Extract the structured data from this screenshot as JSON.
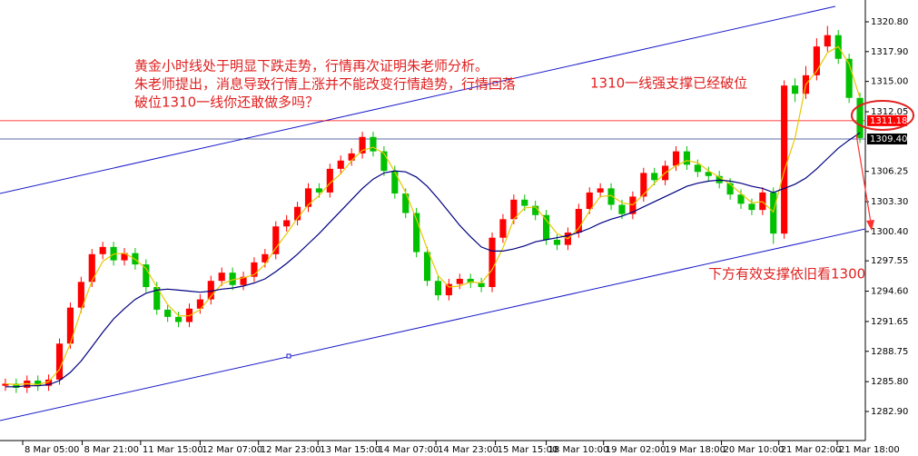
{
  "chart_data": {
    "type": "candlestick",
    "ylim": [
      1280.07,
      1322.92
    ],
    "yticks": [
      {
        "value": 1320.8,
        "label": "1320.80"
      },
      {
        "value": 1317.9,
        "label": "1317.90"
      },
      {
        "value": 1315,
        "label": "1315.00"
      },
      {
        "value": 1312.05,
        "label": "1312.05"
      },
      {
        "value": 1306.25,
        "label": "1306.25"
      },
      {
        "value": 1303.3,
        "label": "1303.30"
      },
      {
        "value": 1300.4,
        "label": "1300.40"
      },
      {
        "value": 1297.55,
        "label": "1297.55"
      },
      {
        "value": 1294.6,
        "label": "1294.60"
      },
      {
        "value": 1291.65,
        "label": "1291.65"
      },
      {
        "value": 1288.75,
        "label": "1288.75"
      },
      {
        "value": 1285.8,
        "label": "1285.80"
      },
      {
        "value": 1282.9,
        "label": "1282.90"
      }
    ],
    "xlim": [
      -0.5,
      79.5
    ],
    "xticks": [
      {
        "value": 1.6,
        "label": "8 Mar 05:00"
      },
      {
        "value": 7.1,
        "label": "8 Mar 21:00"
      },
      {
        "value": 12.5,
        "label": "11 Mar 15:00"
      },
      {
        "value": 18,
        "label": "12 Mar 07:00"
      },
      {
        "value": 23.4,
        "label": "12 Mar 23:00"
      },
      {
        "value": 28.9,
        "label": "13 Mar 15:00"
      },
      {
        "value": 34.3,
        "label": "14 Mar 07:00"
      },
      {
        "value": 39.8,
        "label": "14 Mar 23:00"
      },
      {
        "value": 45.3,
        "label": "15 Mar 15:00"
      },
      {
        "value": 50,
        "label": "18 Mar 10:00"
      },
      {
        "value": 55.3,
        "label": "19 Mar 02:00"
      },
      {
        "value": 60.8,
        "label": "19 Mar 18:00"
      },
      {
        "value": 66.2,
        "label": "20 Mar 10:00"
      },
      {
        "value": 71.5,
        "label": "21 Mar 02:00"
      },
      {
        "value": 76.9,
        "label": "21 Mar 18:00"
      }
    ],
    "up_color": "#ff0000",
    "down_color": "#00c000",
    "ohlc": [
      [
        1285.4,
        1286.1,
        1284.9,
        1285.6
      ],
      [
        1285.6,
        1286.1,
        1284.7,
        1285.2
      ],
      [
        1285.2,
        1286.4,
        1284.7,
        1285.9
      ],
      [
        1285.9,
        1286.4,
        1284.9,
        1285.4
      ],
      [
        1285.4,
        1286.5,
        1284.9,
        1286.0
      ],
      [
        1286.0,
        1290.0,
        1285.5,
        1289.5
      ],
      [
        1289.5,
        1293.5,
        1289.0,
        1293.0
      ],
      [
        1293.0,
        1296.0,
        1292.5,
        1295.5
      ],
      [
        1295.5,
        1298.7,
        1295.0,
        1298.2
      ],
      [
        1298.2,
        1299.4,
        1297.7,
        1298.9
      ],
      [
        1298.9,
        1299.4,
        1297.1,
        1297.6
      ],
      [
        1297.6,
        1298.8,
        1297.1,
        1298.3
      ],
      [
        1298.3,
        1298.8,
        1296.7,
        1297.2
      ],
      [
        1297.2,
        1297.7,
        1294.5,
        1295.0
      ],
      [
        1295.0,
        1295.5,
        1292.3,
        1292.8
      ],
      [
        1292.8,
        1293.3,
        1291.6,
        1292.1
      ],
      [
        1292.1,
        1292.6,
        1291.1,
        1291.6
      ],
      [
        1291.6,
        1293.4,
        1291.1,
        1292.9
      ],
      [
        1292.9,
        1294.3,
        1292.4,
        1293.8
      ],
      [
        1293.8,
        1296.1,
        1293.3,
        1295.6
      ],
      [
        1295.6,
        1296.9,
        1295.1,
        1296.4
      ],
      [
        1296.4,
        1296.9,
        1294.7,
        1295.2
      ],
      [
        1295.2,
        1296.5,
        1294.7,
        1296.0
      ],
      [
        1296.0,
        1297.9,
        1295.5,
        1297.4
      ],
      [
        1297.4,
        1298.7,
        1296.9,
        1298.2
      ],
      [
        1298.2,
        1301.4,
        1297.7,
        1300.9
      ],
      [
        1300.9,
        1302.0,
        1300.4,
        1301.5
      ],
      [
        1301.5,
        1303.3,
        1301.0,
        1302.8
      ],
      [
        1302.8,
        1305.1,
        1302.3,
        1304.6
      ],
      [
        1304.6,
        1305.1,
        1303.7,
        1304.2
      ],
      [
        1304.2,
        1307.0,
        1303.7,
        1306.5
      ],
      [
        1306.5,
        1307.8,
        1306.0,
        1307.3
      ],
      [
        1307.3,
        1308.5,
        1306.8,
        1308.0
      ],
      [
        1308.0,
        1310.1,
        1307.5,
        1309.6
      ],
      [
        1309.6,
        1310.1,
        1307.7,
        1308.2
      ],
      [
        1308.2,
        1308.7,
        1305.8,
        1306.3
      ],
      [
        1306.3,
        1306.8,
        1303.6,
        1304.1
      ],
      [
        1304.1,
        1304.6,
        1301.7,
        1302.2
      ],
      [
        1302.2,
        1302.7,
        1297.9,
        1298.4
      ],
      [
        1298.4,
        1298.9,
        1295.1,
        1295.6
      ],
      [
        1295.6,
        1296.1,
        1293.7,
        1294.2
      ],
      [
        1294.2,
        1295.8,
        1293.7,
        1295.3
      ],
      [
        1295.3,
        1296.3,
        1294.8,
        1295.8
      ],
      [
        1295.8,
        1296.3,
        1294.9,
        1295.4
      ],
      [
        1295.4,
        1295.9,
        1294.5,
        1295.0
      ],
      [
        1295.0,
        1300.3,
        1294.5,
        1299.8
      ],
      [
        1299.8,
        1302.1,
        1299.3,
        1301.6
      ],
      [
        1301.6,
        1304.0,
        1301.1,
        1303.5
      ],
      [
        1303.5,
        1304.0,
        1302.4,
        1302.9
      ],
      [
        1302.9,
        1303.4,
        1301.5,
        1302.0
      ],
      [
        1302.0,
        1302.5,
        1299.1,
        1299.6
      ],
      [
        1299.6,
        1300.1,
        1298.6,
        1299.1
      ],
      [
        1299.1,
        1300.8,
        1298.6,
        1300.3
      ],
      [
        1300.3,
        1303.1,
        1299.8,
        1302.6
      ],
      [
        1302.6,
        1304.7,
        1302.1,
        1304.2
      ],
      [
        1304.2,
        1305.1,
        1303.7,
        1304.6
      ],
      [
        1304.6,
        1305.1,
        1302.5,
        1303.0
      ],
      [
        1303.0,
        1303.5,
        1301.6,
        1302.1
      ],
      [
        1302.1,
        1304.3,
        1301.6,
        1303.8
      ],
      [
        1303.8,
        1306.6,
        1303.3,
        1306.1
      ],
      [
        1306.1,
        1306.6,
        1304.9,
        1305.4
      ],
      [
        1305.4,
        1307.3,
        1304.9,
        1306.8
      ],
      [
        1306.8,
        1308.7,
        1306.3,
        1308.2
      ],
      [
        1308.2,
        1308.7,
        1306.4,
        1306.9
      ],
      [
        1306.9,
        1307.4,
        1305.7,
        1306.2
      ],
      [
        1306.2,
        1306.7,
        1305.3,
        1305.8
      ],
      [
        1305.8,
        1306.3,
        1304.6,
        1305.1
      ],
      [
        1305.1,
        1305.6,
        1303.5,
        1304.0
      ],
      [
        1304.0,
        1304.5,
        1302.6,
        1303.1
      ],
      [
        1303.1,
        1303.6,
        1302.0,
        1302.5
      ],
      [
        1302.5,
        1304.7,
        1302.0,
        1304.2
      ],
      [
        1304.2,
        1304.7,
        1299.2,
        1300.2
      ],
      [
        1300.2,
        1315.1,
        1299.7,
        1314.6
      ],
      [
        1314.6,
        1315.3,
        1313.0,
        1313.8
      ],
      [
        1313.8,
        1316.5,
        1313.3,
        1315.6
      ],
      [
        1315.6,
        1319.2,
        1315.1,
        1318.4
      ],
      [
        1318.4,
        1320.4,
        1317.9,
        1319.5
      ],
      [
        1319.5,
        1320.0,
        1316.7,
        1317.2
      ],
      [
        1317.2,
        1317.7,
        1312.9,
        1313.4
      ],
      [
        1313.4,
        1313.9,
        1309.0,
        1309.5
      ]
    ],
    "lines": [
      {
        "color": "#e8c800",
        "values": [
          1285.6,
          1285.5,
          1285.6,
          1285.5,
          1285.8,
          1287.0,
          1289.5,
          1292.7,
          1295.6,
          1297.5,
          1298.2,
          1298.3,
          1297.7,
          1296.8,
          1295.0,
          1293.3,
          1292.2,
          1292.2,
          1292.8,
          1294.1,
          1295.3,
          1295.7,
          1295.9,
          1296.2,
          1297.2,
          1298.8,
          1300.2,
          1301.7,
          1303.0,
          1303.9,
          1305.1,
          1306.0,
          1307.3,
          1308.3,
          1308.6,
          1308.0,
          1306.2,
          1304.2,
          1301.6,
          1298.7,
          1296.1,
          1295.0,
          1295.1,
          1295.5,
          1295.4,
          1296.7,
          1298.8,
          1301.6,
          1302.7,
          1302.8,
          1301.5,
          1300.2,
          1299.7,
          1300.7,
          1302.4,
          1303.8,
          1303.9,
          1303.2,
          1303.0,
          1304.0,
          1305.1,
          1306.1,
          1306.8,
          1307.3,
          1307.1,
          1306.3,
          1305.7,
          1305.0,
          1304.1,
          1303.2,
          1303.3,
          1302.3,
          1306.3,
          1309.5,
          1314.7,
          1316.0,
          1317.8,
          1318.4,
          1316.7,
          1313.4
        ]
      },
      {
        "color": "#000080",
        "values": [
          1285.3,
          1285.3,
          1285.4,
          1285.4,
          1285.5,
          1285.9,
          1286.7,
          1287.8,
          1289.2,
          1290.6,
          1291.9,
          1292.9,
          1293.8,
          1294.4,
          1294.7,
          1294.8,
          1294.7,
          1294.6,
          1294.5,
          1294.6,
          1294.8,
          1294.9,
          1295.1,
          1295.4,
          1295.8,
          1296.5,
          1297.3,
          1298.2,
          1299.2,
          1300.2,
          1301.3,
          1302.4,
          1303.5,
          1304.6,
          1305.5,
          1306.1,
          1306.3,
          1306.2,
          1305.7,
          1304.8,
          1303.6,
          1302.3,
          1301.0,
          1299.9,
          1298.9,
          1298.5,
          1298.5,
          1298.7,
          1299.0,
          1299.4,
          1299.6,
          1299.8,
          1300.0,
          1300.3,
          1300.7,
          1301.2,
          1301.6,
          1301.9,
          1302.3,
          1302.8,
          1303.3,
          1303.8,
          1304.3,
          1304.8,
          1305.1,
          1305.3,
          1305.4,
          1305.3,
          1305.1,
          1304.8,
          1304.6,
          1304.2,
          1304.6,
          1305.0,
          1305.6,
          1306.5,
          1307.5,
          1308.5,
          1309.3,
          1310.0
        ]
      }
    ],
    "levels": [
      {
        "value": 1311.18,
        "label": "1311.18",
        "color": "#ff0000"
      },
      {
        "value": 1309.4,
        "label": "1309.40",
        "color": "#000000"
      }
    ],
    "annotations": [
      "黄金小时线处于明显下跌走势，行情再次证明朱老师分析。",
      "朱老师提出，消息导致行情上涨并不能改变行情趋势，行情回落",
      "破位1310一线你还敢做多吗？",
      "1310一线强支撑已经破位",
      "下方有效支撑依旧看1300"
    ]
  }
}
